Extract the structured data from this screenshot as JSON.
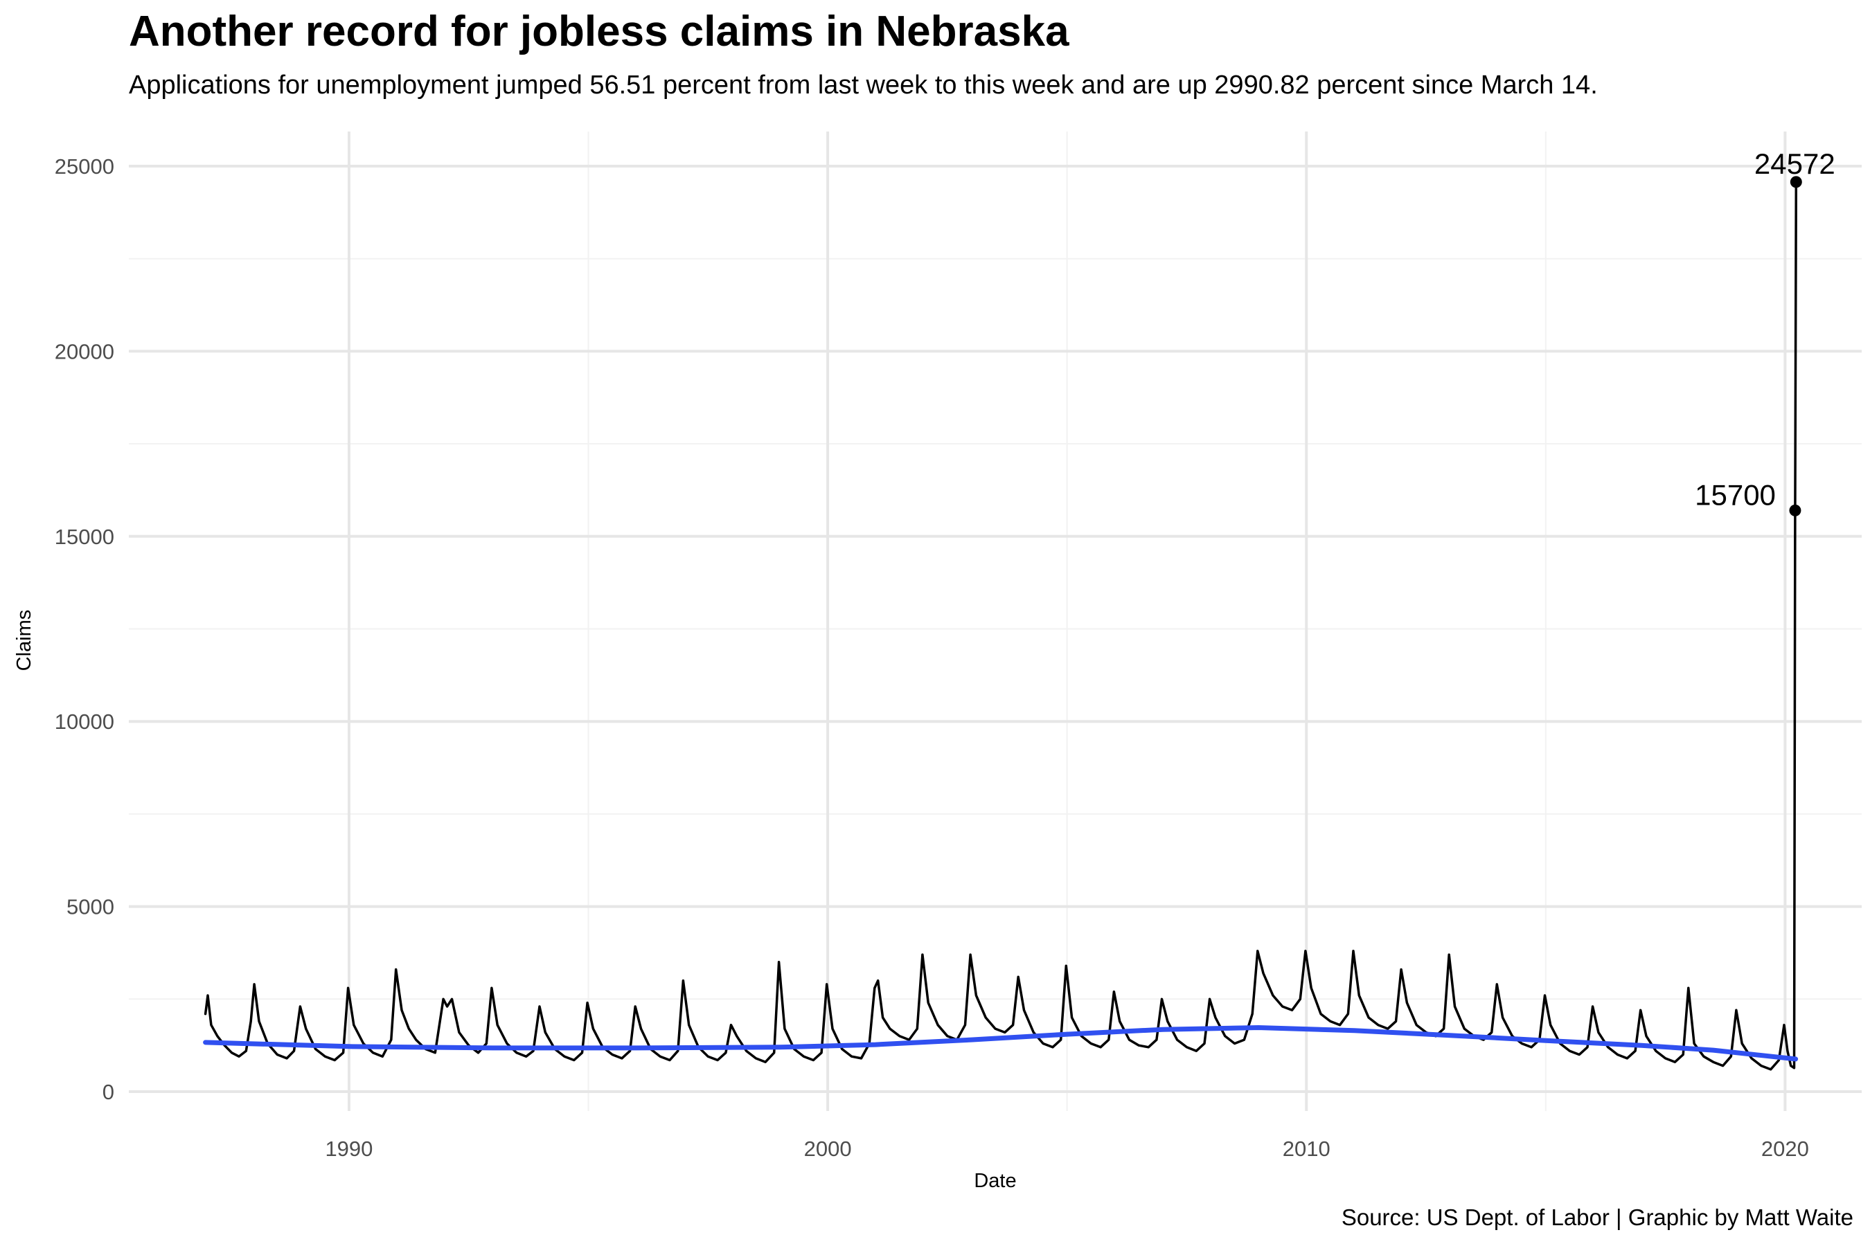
{
  "chart_data": {
    "type": "line",
    "title": "Another record for jobless claims in Nebraska",
    "subtitle": "Applications for unemployment jumped 56.51 percent from last week to this week and are up 2990.82 percent since March 14.",
    "caption": "Source: US Dept. of Labor  |  Graphic by Matt Waite",
    "xlabel": "Date",
    "ylabel": "Claims",
    "xlim": [
      1985.4,
      2021.6
    ],
    "ylim": [
      0,
      25000
    ],
    "x_ticks": [
      "1990",
      "2000",
      "2010",
      "2020"
    ],
    "y_ticks": [
      "0",
      "5000",
      "10000",
      "15000",
      "20000",
      "25000"
    ],
    "grid": true,
    "series": [
      {
        "color": "#000000",
        "points": [
          [
            1987.0,
            2100
          ],
          [
            1987.05,
            2600
          ],
          [
            1987.12,
            1800
          ],
          [
            1987.25,
            1500
          ],
          [
            1987.4,
            1250
          ],
          [
            1987.55,
            1050
          ],
          [
            1987.7,
            950
          ],
          [
            1987.85,
            1100
          ],
          [
            1987.95,
            1900
          ],
          [
            1988.02,
            2900
          ],
          [
            1988.12,
            1900
          ],
          [
            1988.3,
            1300
          ],
          [
            1988.5,
            1000
          ],
          [
            1988.7,
            900
          ],
          [
            1988.85,
            1100
          ],
          [
            1988.98,
            2300
          ],
          [
            1989.1,
            1700
          ],
          [
            1989.3,
            1150
          ],
          [
            1989.5,
            950
          ],
          [
            1989.7,
            850
          ],
          [
            1989.88,
            1050
          ],
          [
            1989.98,
            2800
          ],
          [
            1990.1,
            1800
          ],
          [
            1990.3,
            1300
          ],
          [
            1990.5,
            1050
          ],
          [
            1990.7,
            950
          ],
          [
            1990.88,
            1400
          ],
          [
            1990.98,
            3300
          ],
          [
            1991.1,
            2200
          ],
          [
            1991.25,
            1700
          ],
          [
            1991.4,
            1400
          ],
          [
            1991.6,
            1150
          ],
          [
            1991.8,
            1050
          ],
          [
            1991.97,
            2500
          ],
          [
            1992.05,
            2300
          ],
          [
            1992.15,
            2500
          ],
          [
            1992.3,
            1600
          ],
          [
            1992.5,
            1250
          ],
          [
            1992.7,
            1050
          ],
          [
            1992.87,
            1300
          ],
          [
            1992.98,
            2800
          ],
          [
            1993.1,
            1800
          ],
          [
            1993.3,
            1300
          ],
          [
            1993.5,
            1050
          ],
          [
            1993.7,
            950
          ],
          [
            1993.85,
            1100
          ],
          [
            1993.98,
            2300
          ],
          [
            1994.1,
            1600
          ],
          [
            1994.3,
            1150
          ],
          [
            1994.5,
            950
          ],
          [
            1994.7,
            850
          ],
          [
            1994.87,
            1050
          ],
          [
            1994.98,
            2400
          ],
          [
            1995.1,
            1700
          ],
          [
            1995.3,
            1200
          ],
          [
            1995.5,
            1000
          ],
          [
            1995.7,
            900
          ],
          [
            1995.87,
            1100
          ],
          [
            1995.98,
            2300
          ],
          [
            1996.1,
            1700
          ],
          [
            1996.3,
            1150
          ],
          [
            1996.5,
            950
          ],
          [
            1996.7,
            850
          ],
          [
            1996.87,
            1100
          ],
          [
            1996.98,
            3000
          ],
          [
            1997.1,
            1800
          ],
          [
            1997.3,
            1200
          ],
          [
            1997.5,
            950
          ],
          [
            1997.7,
            850
          ],
          [
            1997.87,
            1050
          ],
          [
            1997.98,
            1800
          ],
          [
            1998.1,
            1500
          ],
          [
            1998.3,
            1100
          ],
          [
            1998.5,
            900
          ],
          [
            1998.7,
            800
          ],
          [
            1998.88,
            1050
          ],
          [
            1998.98,
            3500
          ],
          [
            1999.1,
            1700
          ],
          [
            1999.3,
            1150
          ],
          [
            1999.5,
            950
          ],
          [
            1999.7,
            850
          ],
          [
            1999.87,
            1050
          ],
          [
            1999.98,
            2900
          ],
          [
            2000.1,
            1700
          ],
          [
            2000.3,
            1150
          ],
          [
            2000.5,
            950
          ],
          [
            2000.7,
            900
          ],
          [
            2000.87,
            1300
          ],
          [
            2000.98,
            2800
          ],
          [
            2001.05,
            3000
          ],
          [
            2001.15,
            2000
          ],
          [
            2001.3,
            1700
          ],
          [
            2001.5,
            1500
          ],
          [
            2001.7,
            1400
          ],
          [
            2001.87,
            1700
          ],
          [
            2001.98,
            3700
          ],
          [
            2002.1,
            2400
          ],
          [
            2002.3,
            1800
          ],
          [
            2002.5,
            1500
          ],
          [
            2002.7,
            1400
          ],
          [
            2002.87,
            1800
          ],
          [
            2002.98,
            3700
          ],
          [
            2003.1,
            2600
          ],
          [
            2003.3,
            2000
          ],
          [
            2003.5,
            1700
          ],
          [
            2003.7,
            1600
          ],
          [
            2003.87,
            1800
          ],
          [
            2003.98,
            3100
          ],
          [
            2004.1,
            2200
          ],
          [
            2004.3,
            1600
          ],
          [
            2004.5,
            1300
          ],
          [
            2004.7,
            1200
          ],
          [
            2004.87,
            1400
          ],
          [
            2004.98,
            3400
          ],
          [
            2005.1,
            2000
          ],
          [
            2005.3,
            1500
          ],
          [
            2005.5,
            1300
          ],
          [
            2005.7,
            1200
          ],
          [
            2005.87,
            1400
          ],
          [
            2005.98,
            2700
          ],
          [
            2006.1,
            1900
          ],
          [
            2006.3,
            1400
          ],
          [
            2006.5,
            1250
          ],
          [
            2006.7,
            1200
          ],
          [
            2006.87,
            1400
          ],
          [
            2006.98,
            2500
          ],
          [
            2007.1,
            1900
          ],
          [
            2007.3,
            1400
          ],
          [
            2007.5,
            1200
          ],
          [
            2007.7,
            1100
          ],
          [
            2007.87,
            1300
          ],
          [
            2007.98,
            2500
          ],
          [
            2008.1,
            2000
          ],
          [
            2008.3,
            1500
          ],
          [
            2008.5,
            1300
          ],
          [
            2008.7,
            1400
          ],
          [
            2008.87,
            2100
          ],
          [
            2008.98,
            3800
          ],
          [
            2009.1,
            3200
          ],
          [
            2009.3,
            2600
          ],
          [
            2009.5,
            2300
          ],
          [
            2009.7,
            2200
          ],
          [
            2009.87,
            2500
          ],
          [
            2009.98,
            3800
          ],
          [
            2010.1,
            2800
          ],
          [
            2010.3,
            2100
          ],
          [
            2010.5,
            1900
          ],
          [
            2010.7,
            1800
          ],
          [
            2010.87,
            2100
          ],
          [
            2010.98,
            3800
          ],
          [
            2011.1,
            2600
          ],
          [
            2011.3,
            2000
          ],
          [
            2011.5,
            1800
          ],
          [
            2011.7,
            1700
          ],
          [
            2011.87,
            1900
          ],
          [
            2011.98,
            3300
          ],
          [
            2012.1,
            2400
          ],
          [
            2012.3,
            1800
          ],
          [
            2012.5,
            1600
          ],
          [
            2012.7,
            1500
          ],
          [
            2012.87,
            1700
          ],
          [
            2012.98,
            3700
          ],
          [
            2013.1,
            2300
          ],
          [
            2013.3,
            1700
          ],
          [
            2013.5,
            1500
          ],
          [
            2013.7,
            1400
          ],
          [
            2013.87,
            1600
          ],
          [
            2013.98,
            2900
          ],
          [
            2014.1,
            2000
          ],
          [
            2014.3,
            1500
          ],
          [
            2014.5,
            1300
          ],
          [
            2014.7,
            1200
          ],
          [
            2014.87,
            1400
          ],
          [
            2014.98,
            2600
          ],
          [
            2015.1,
            1800
          ],
          [
            2015.3,
            1300
          ],
          [
            2015.5,
            1100
          ],
          [
            2015.7,
            1000
          ],
          [
            2015.87,
            1200
          ],
          [
            2015.98,
            2300
          ],
          [
            2016.1,
            1600
          ],
          [
            2016.3,
            1200
          ],
          [
            2016.5,
            1000
          ],
          [
            2016.7,
            900
          ],
          [
            2016.87,
            1100
          ],
          [
            2016.98,
            2200
          ],
          [
            2017.1,
            1500
          ],
          [
            2017.3,
            1100
          ],
          [
            2017.5,
            900
          ],
          [
            2017.7,
            800
          ],
          [
            2017.87,
            1000
          ],
          [
            2017.98,
            2800
          ],
          [
            2018.1,
            1300
          ],
          [
            2018.3,
            950
          ],
          [
            2018.5,
            800
          ],
          [
            2018.7,
            700
          ],
          [
            2018.87,
            950
          ],
          [
            2018.98,
            2200
          ],
          [
            2019.1,
            1300
          ],
          [
            2019.3,
            900
          ],
          [
            2019.5,
            700
          ],
          [
            2019.7,
            600
          ],
          [
            2019.87,
            850
          ],
          [
            2019.98,
            1800
          ],
          [
            2020.05,
            1100
          ],
          [
            2020.12,
            700
          ],
          [
            2020.19,
            640
          ],
          [
            2020.21,
            15700
          ],
          [
            2020.23,
            24572
          ]
        ]
      },
      {
        "color": "#3050f0",
        "points": [
          [
            1987.0,
            1330
          ],
          [
            1990.0,
            1220
          ],
          [
            1993.0,
            1180
          ],
          [
            1996.0,
            1180
          ],
          [
            1999.0,
            1200
          ],
          [
            2001.0,
            1270
          ],
          [
            2003.0,
            1400
          ],
          [
            2005.0,
            1550
          ],
          [
            2007.0,
            1680
          ],
          [
            2009.0,
            1730
          ],
          [
            2011.0,
            1650
          ],
          [
            2013.0,
            1520
          ],
          [
            2015.0,
            1380
          ],
          [
            2017.0,
            1250
          ],
          [
            2018.5,
            1120
          ],
          [
            2020.22,
            880
          ]
        ]
      }
    ],
    "highlight_points": [
      {
        "x": 2020.21,
        "y": 15700,
        "label": "15700"
      },
      {
        "x": 2020.23,
        "y": 24572,
        "label": "24572"
      }
    ]
  }
}
